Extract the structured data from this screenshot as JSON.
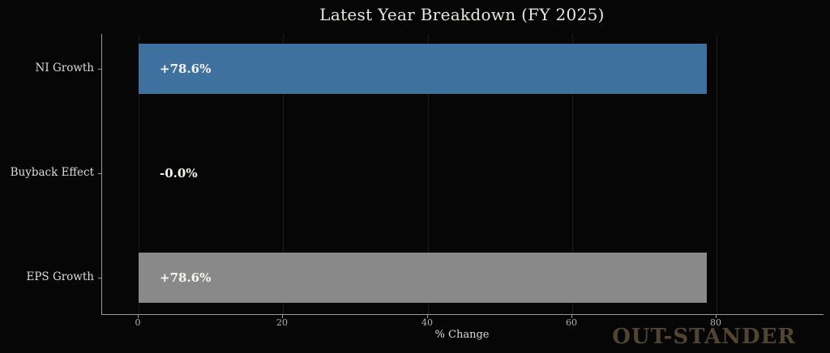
{
  "chart_data": {
    "type": "bar",
    "orientation": "horizontal",
    "title": "Latest Year Breakdown (FY 2025)",
    "categories": [
      "NI Growth",
      "Buyback Effect",
      "EPS Growth"
    ],
    "values": [
      78.6,
      -0.0,
      78.6
    ],
    "value_labels": [
      "+78.6%",
      "-0.0%",
      "+78.6%"
    ],
    "bar_colors": [
      "#3f719f",
      "#898989",
      "#898989"
    ],
    "xlabel": "% Change",
    "x_ticks": [
      0,
      20,
      40,
      60,
      80
    ],
    "xlim": [
      -5.05,
      94.8
    ],
    "grid": true,
    "legend": false
  },
  "watermark": {
    "text": "OUT-STANDER",
    "color": "#514531"
  },
  "colors": {
    "background": "#060606",
    "bar_blue": "#3f719f",
    "bar_gray": "#898989",
    "spine": "#9a9a9a",
    "gridline": "#1a1a1a",
    "title_text": "#e8e6e3",
    "tick_text": "#b3b1ae",
    "value_text": "#f7f5f2"
  }
}
